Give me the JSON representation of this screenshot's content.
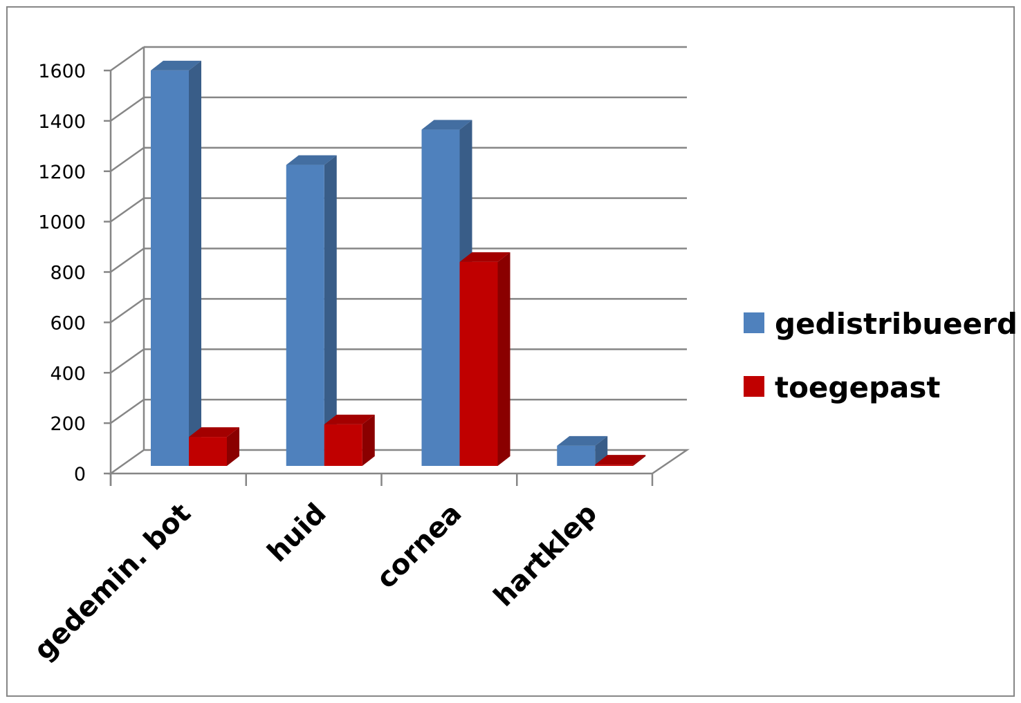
{
  "chart_data": {
    "type": "bar",
    "style": "3d-clustered-column",
    "categories": [
      "gedemin. bot",
      "huid",
      "cornea",
      "hartklep"
    ],
    "series": [
      {
        "name": "gedistribueerd",
        "values": [
          1570,
          1195,
          1335,
          80
        ],
        "color": "#4F81BD"
      },
      {
        "name": "toegepast",
        "values": [
          115,
          165,
          810,
          5
        ],
        "color": "#C00000"
      }
    ],
    "ylim": [
      0,
      1600
    ],
    "yticks": [
      0,
      200,
      400,
      600,
      800,
      1000,
      1200,
      1400,
      1600
    ],
    "xlabel": "",
    "ylabel": "",
    "grid": true,
    "legend": "right"
  },
  "colors": {
    "frame": "#868686",
    "gridline": "#868686",
    "axis": "#868686"
  }
}
